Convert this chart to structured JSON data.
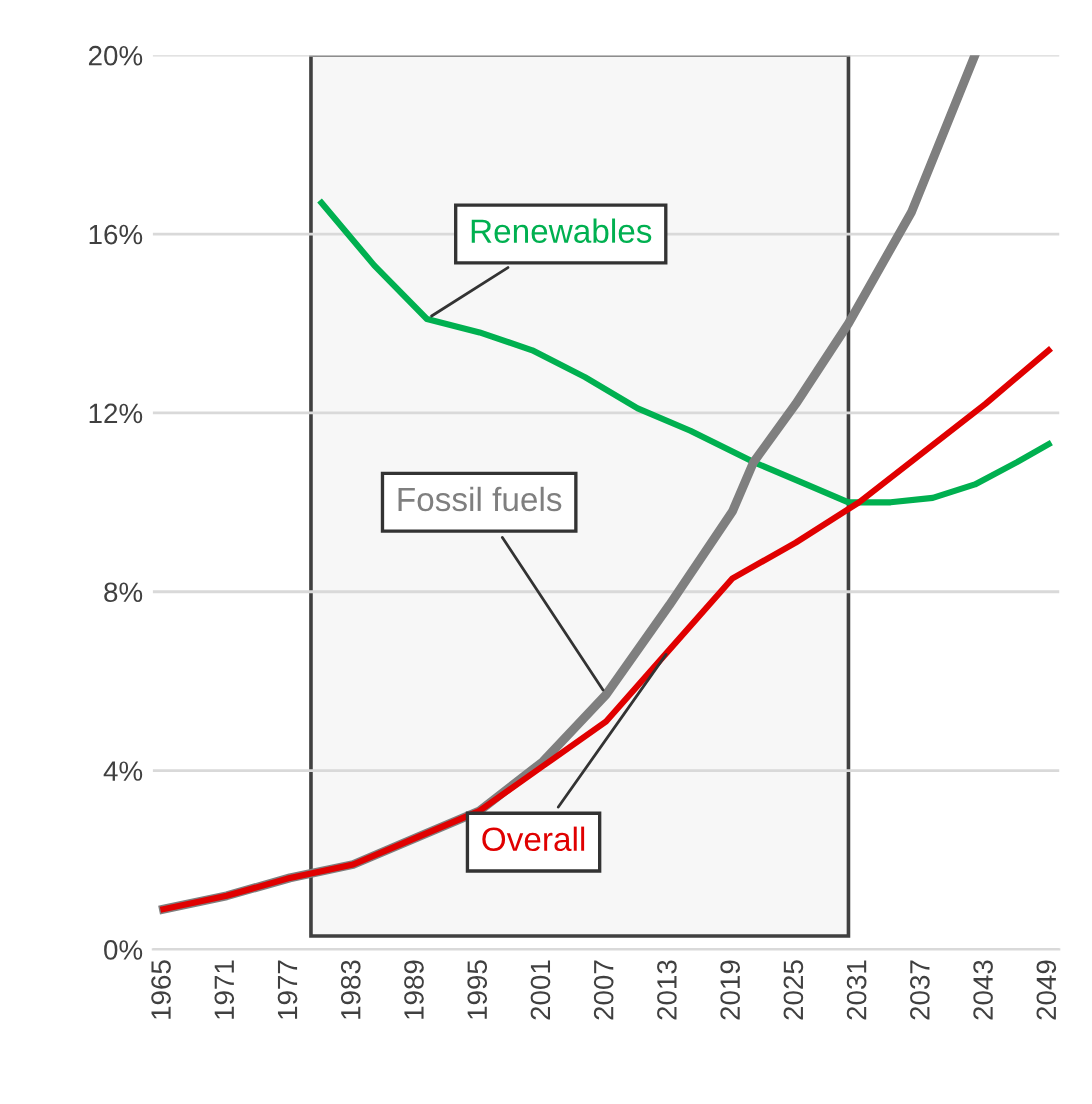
{
  "chart_data": {
    "type": "line",
    "series": [
      {
        "name": "Renewables",
        "color": "#00b050",
        "x": [
          1980,
          1985,
          1990,
          1995,
          2000,
          2005,
          2010,
          2015,
          2021,
          2026,
          2030,
          2034,
          2038,
          2042,
          2046,
          2049
        ],
        "values": [
          16.7,
          15.3,
          14.1,
          13.8,
          13.4,
          12.8,
          12.1,
          11.6,
          10.9,
          10.4,
          10.0,
          10.0,
          10.1,
          10.4,
          10.9,
          11.3
        ]
      },
      {
        "name": "Fossil fuels",
        "color": "#7f7f7f",
        "x": [
          1965,
          1971,
          1977,
          1983,
          1989,
          1995,
          2001,
          2007,
          2013,
          2019,
          2021,
          2025,
          2030,
          2036,
          2042
        ],
        "values": [
          0.9,
          1.2,
          1.6,
          1.9,
          2.5,
          3.1,
          4.2,
          5.7,
          7.7,
          9.8,
          10.9,
          12.2,
          14.0,
          16.5,
          20.0
        ]
      },
      {
        "name": "Overall",
        "color": "#e00000",
        "x": [
          1965,
          1971,
          1977,
          1983,
          1989,
          1995,
          2001,
          2007,
          2013,
          2019,
          2025,
          2031,
          2037,
          2043,
          2049
        ],
        "values": [
          0.9,
          1.2,
          1.6,
          1.9,
          2.5,
          3.1,
          4.1,
          5.1,
          6.7,
          8.3,
          9.1,
          10.0,
          11.1,
          12.2,
          13.4
        ]
      }
    ],
    "xlim": [
      1964,
      2050
    ],
    "xticks": [
      1965,
      1971,
      1977,
      1983,
      1989,
      1995,
      2001,
      2007,
      2013,
      2019,
      2025,
      2031,
      2037,
      2043,
      2049
    ],
    "ylim": [
      0,
      20
    ],
    "yticks": [
      {
        "value": 0,
        "label": "0%"
      },
      {
        "value": 4,
        "label": "4%"
      },
      {
        "value": 8,
        "label": "8%"
      },
      {
        "value": 12,
        "label": "12%"
      },
      {
        "value": 16,
        "label": "16%"
      },
      {
        "value": 20,
        "label": "20%"
      }
    ],
    "bands": [
      {
        "axis": "x",
        "from": 1979,
        "to": 2030,
        "color": "#f7f7f7"
      }
    ],
    "grid": "y",
    "legend": false,
    "marker": "none",
    "line_style": "solid"
  }
}
